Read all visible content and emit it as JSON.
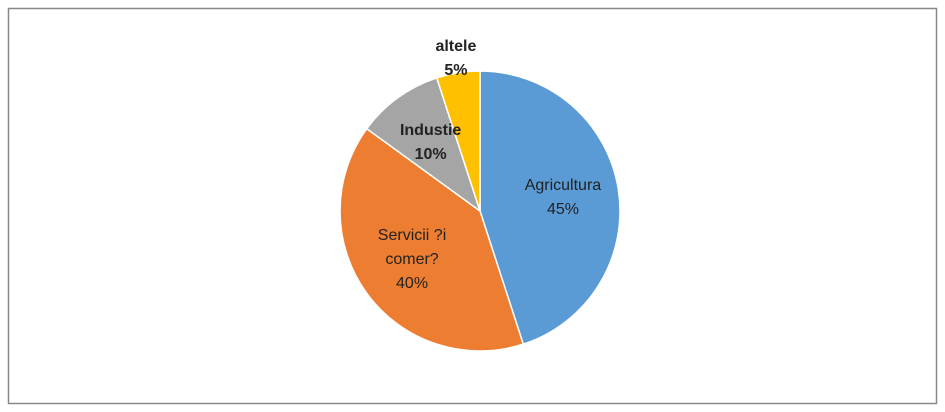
{
  "chart_data": {
    "type": "pie",
    "categories": [
      "Agricultura",
      "Servicii ?i comer?",
      "Industie",
      "altele"
    ],
    "values": [
      45,
      40,
      10,
      5
    ],
    "value_labels": [
      "45%",
      "40%",
      "10%",
      "5%"
    ],
    "colors": [
      "#5b9bd5",
      "#ed7d31",
      "#a5a5a5",
      "#ffc000"
    ]
  }
}
